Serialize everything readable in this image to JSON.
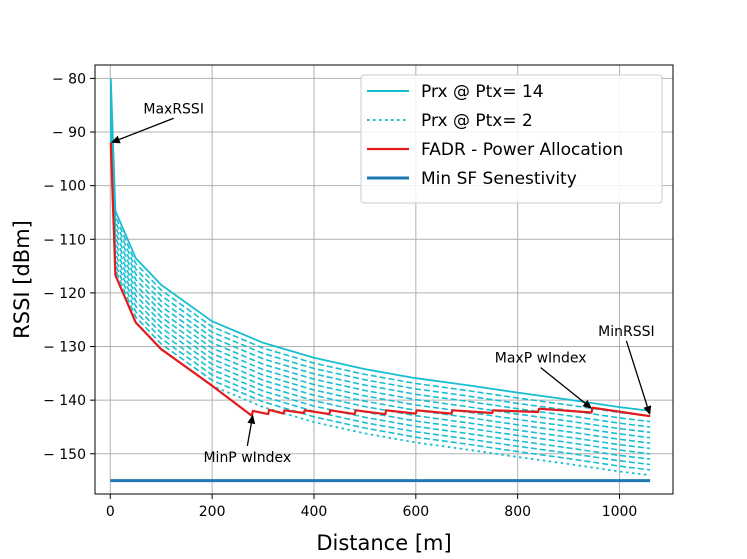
{
  "chart_data": {
    "type": "line",
    "title": "",
    "xlabel": "Distance [m]",
    "ylabel": "RSSI [dBm]",
    "xlim": [
      -30,
      1105
    ],
    "ylim": [
      -157.5,
      -77.5
    ],
    "xticks": [
      0,
      200,
      400,
      600,
      800,
      1000
    ],
    "xtick_labels": [
      "0",
      "200",
      "400",
      "600",
      "800",
      "1000"
    ],
    "yticks": [
      -80,
      -90,
      -100,
      -110,
      -120,
      -130,
      -140,
      -150
    ],
    "ytick_labels": [
      "− 80",
      "− 90",
      "− 100",
      "− 110",
      "− 120",
      "− 130",
      "− 140",
      "− 150"
    ],
    "grid": true,
    "legend_position": "top-right",
    "series": [
      {
        "name": "Prx @ Ptx= 14",
        "style": "solid",
        "color": "#17becf",
        "x": [
          1,
          10,
          50,
          100,
          200,
          300,
          400,
          500,
          600,
          700,
          800,
          900,
          1000,
          1060
        ],
        "y": [
          -80.0,
          -104.7,
          -113.5,
          -118.5,
          -125.3,
          -129.3,
          -132.1,
          -134.2,
          -135.9,
          -137.2,
          -138.6,
          -139.9,
          -141.3,
          -142.0
        ]
      },
      {
        "name": "Prx @ Ptx= 2",
        "style": "dotted",
        "color": "#17becf",
        "x": [
          1,
          10,
          50,
          100,
          200,
          300,
          400,
          500,
          600,
          700,
          800,
          900,
          1000,
          1060
        ],
        "y": [
          -92.0,
          -116.7,
          -125.5,
          -130.5,
          -137.3,
          -141.3,
          -144.1,
          -146.2,
          -147.9,
          -149.2,
          -150.6,
          -151.9,
          -153.3,
          -154.0
        ]
      },
      {
        "name": "FADR - Power Allocation",
        "style": "solid",
        "color": "#e31a1c",
        "x": [
          1,
          10,
          50,
          100,
          200,
          278,
          280,
          310,
          312,
          340,
          342,
          380,
          382,
          430,
          432,
          480,
          482,
          540,
          542,
          600,
          602,
          670,
          672,
          750,
          752,
          840,
          842,
          945,
          947,
          1060
        ],
        "y": [
          -92.0,
          -116.7,
          -125.5,
          -130.5,
          -137.3,
          -142.9,
          -142.0,
          -142.6,
          -141.8,
          -142.5,
          -141.9,
          -142.4,
          -141.9,
          -142.6,
          -141.9,
          -142.6,
          -141.9,
          -142.6,
          -141.9,
          -142.5,
          -141.9,
          -142.5,
          -141.9,
          -142.4,
          -141.9,
          -142.2,
          -141.6,
          -142.3,
          -141.4,
          -143.0
        ]
      },
      {
        "name": "Min SF Senestivity",
        "style": "solid",
        "color": "#1f77b4",
        "x": [
          0,
          1060
        ],
        "y": [
          -155,
          -155
        ]
      }
    ],
    "intermediate_curves": {
      "count": 11,
      "style": "dashed",
      "color": "#17becf",
      "offset_range_db": [
        1,
        11
      ]
    },
    "annotations": [
      {
        "name": "max-rssi-annotation",
        "text": "MaxRSSI",
        "point": [
          1,
          -92.0
        ],
        "label_at": [
          65,
          -86.5
        ]
      },
      {
        "name": "min-rssi-annotation",
        "text": "MinRSSI",
        "point": [
          1060,
          -142.8
        ],
        "label_at": [
          958,
          -128
        ]
      },
      {
        "name": "maxp-windex-annotation",
        "text": "MaxP  wIndex",
        "point": [
          946,
          -141.6
        ],
        "label_at": [
          755,
          -133
        ]
      },
      {
        "name": "minp-windex-annotation",
        "text": "MinP  wIndex",
        "point": [
          280,
          -142.7
        ],
        "label_at": [
          183,
          -151.5
        ]
      }
    ]
  }
}
